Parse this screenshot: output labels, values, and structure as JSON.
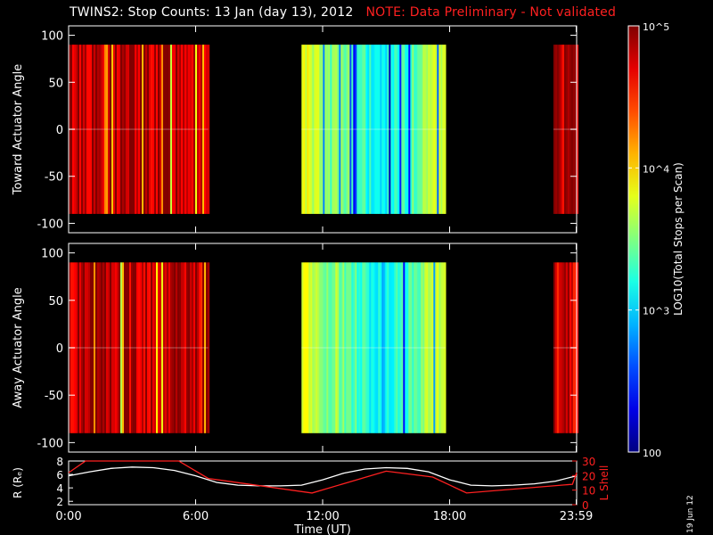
{
  "header": {
    "title": "TWINS2: Stop Counts: 13 Jan (day 13), 2012",
    "note": "NOTE: Data Preliminary - Not validated"
  },
  "datestamp": "19 Jun 12",
  "colors": {
    "background": "#000000",
    "axes": "#ffffff",
    "note": "#ff2020",
    "orbit_r": "#ffffff",
    "orbit_lshell": "#ff2020"
  },
  "chart_data": [
    {
      "type": "heatmap",
      "name": "toward",
      "ylabel": "Toward Actuator Angle",
      "ylim": [
        -110,
        110
      ],
      "y_ticks": [
        "100",
        "50",
        "0",
        "-50",
        "-100"
      ],
      "data_y_range": [
        -90,
        90
      ],
      "x_range_hours": [
        0,
        24
      ],
      "data_segments_hours": [
        [
          0.0,
          6.6
        ],
        [
          11.0,
          17.8
        ],
        [
          22.9,
          24.0
        ]
      ],
      "dominant_log10": [
        4.85,
        3.6,
        4.85
      ]
    },
    {
      "type": "heatmap",
      "name": "away",
      "ylabel": "Away Actuator Angle",
      "ylim": [
        -110,
        110
      ],
      "y_ticks": [
        "100",
        "50",
        "0",
        "-50",
        "-100"
      ],
      "data_y_range": [
        -90,
        90
      ],
      "x_range_hours": [
        0,
        24
      ],
      "data_segments_hours": [
        [
          0.0,
          6.6
        ],
        [
          11.0,
          17.8
        ],
        [
          22.9,
          24.0
        ]
      ],
      "dominant_log10": [
        4.8,
        3.5,
        4.8
      ]
    },
    {
      "type": "line",
      "name": "orbit",
      "xlabel": "Time (UT)",
      "x_ticks": [
        "0:00",
        "6:00",
        "12:00",
        "18:00",
        "23:59"
      ],
      "ylabel_left": "R (Rₑ)",
      "ylabel_right": "L Shell",
      "left_ticks": [
        "8",
        "6",
        "4",
        "2"
      ],
      "right_ticks": [
        "30",
        "20",
        "10",
        "0"
      ],
      "ylim_left": [
        1.5,
        8
      ],
      "ylim_right": [
        0,
        30
      ],
      "series": [
        {
          "axis": "left",
          "x": [
            0,
            1,
            2,
            3,
            4,
            5,
            6,
            7,
            8,
            9,
            10,
            11,
            12,
            13,
            14,
            15,
            16,
            17,
            18,
            19,
            20,
            21,
            22,
            23,
            24
          ],
          "values": [
            5.8,
            6.4,
            6.9,
            7.1,
            7.0,
            6.6,
            5.8,
            4.8,
            4.4,
            4.3,
            4.3,
            4.4,
            5.2,
            6.2,
            6.8,
            7.0,
            6.9,
            6.4,
            5.2,
            4.4,
            4.3,
            4.4,
            4.6,
            5.0,
            5.8
          ]
        },
        {
          "axis": "right",
          "x": [
            0,
            0.8,
            5.2,
            6.6,
            11.5,
            15.0,
            17.2,
            18.8,
            23.8,
            24
          ],
          "values": [
            22,
            31,
            31,
            18,
            8,
            23,
            19,
            8,
            14,
            22
          ]
        }
      ]
    },
    {
      "type": "colorbar",
      "name": "colorbar",
      "label": "LOG10(Total Stops per Scan)",
      "range_log10": [
        2,
        5
      ],
      "ticks": [
        {
          "value": 5,
          "label": "10^5"
        },
        {
          "value": 4,
          "label": "10^4"
        },
        {
          "value": 3,
          "label": "10^3"
        },
        {
          "value": 2,
          "label": "100"
        }
      ]
    }
  ]
}
